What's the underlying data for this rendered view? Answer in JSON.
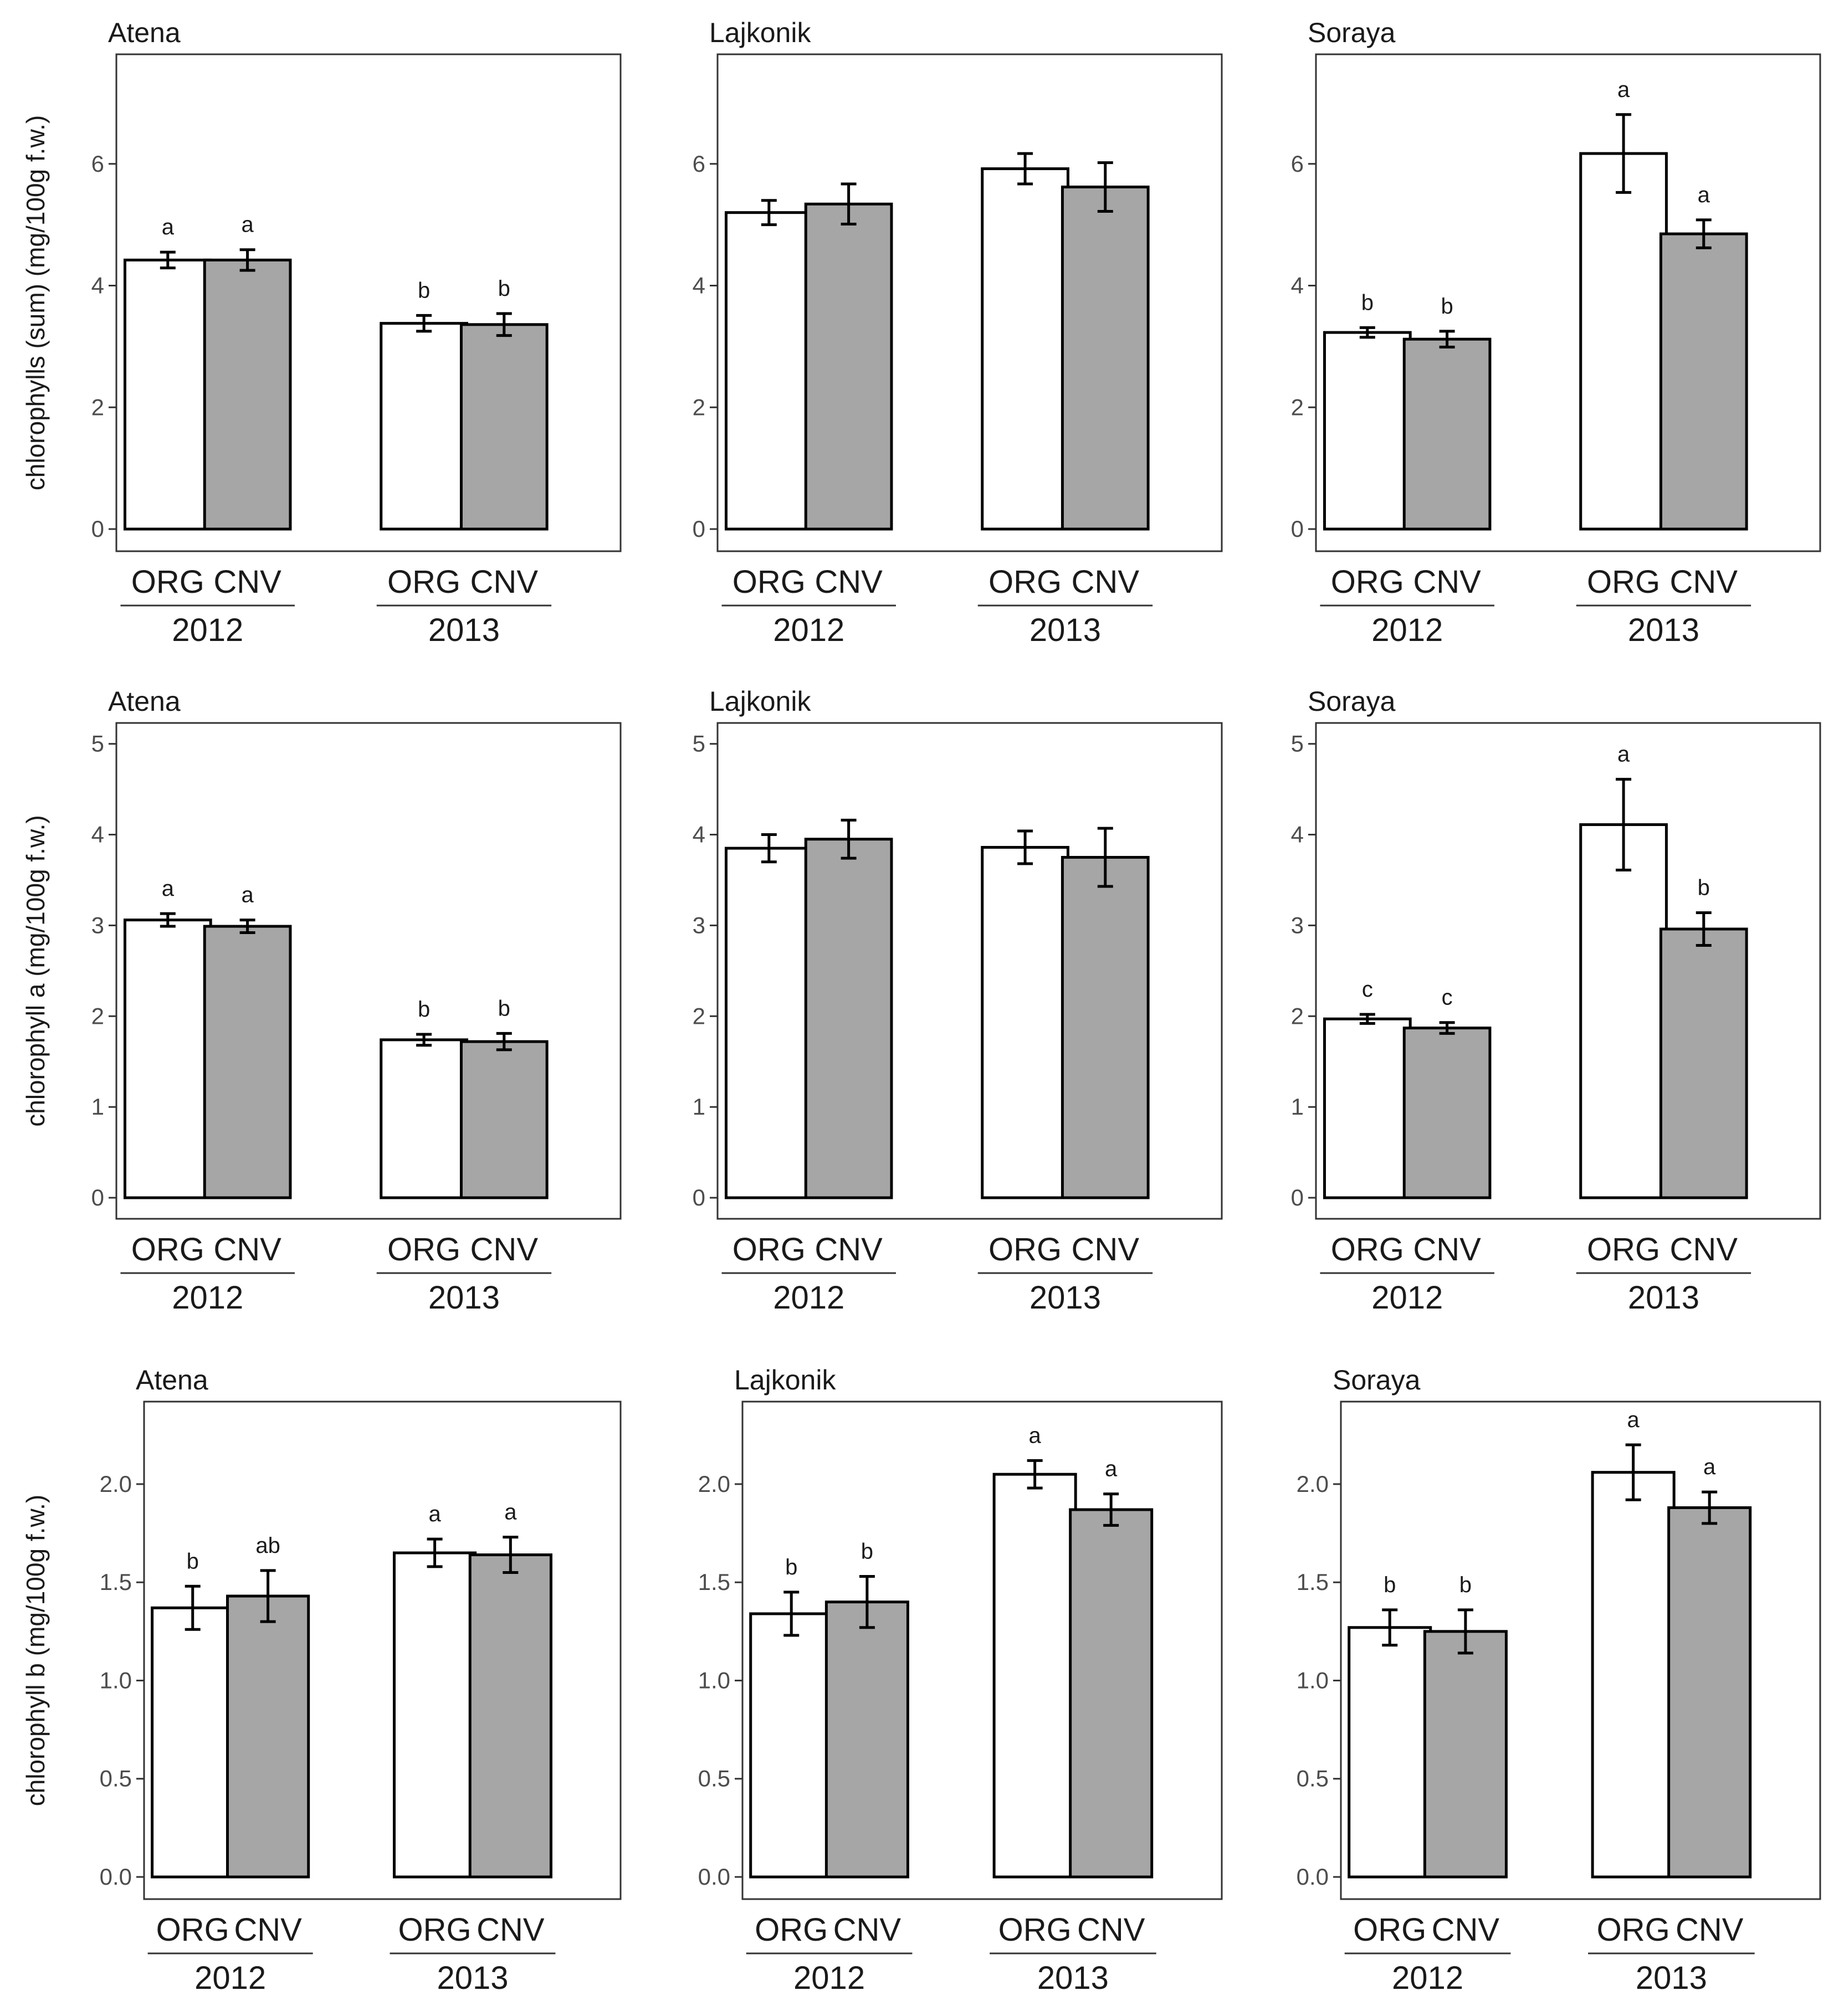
{
  "chart_data": [
    {
      "type": "bar",
      "title": "Atena",
      "ylabel": "chlorophylls (sum) (mg/100g f.w.)",
      "ylim": [
        0,
        7.8
      ],
      "yticks": [
        "0",
        "2",
        "4",
        "6"
      ],
      "groups": [
        "2012",
        "2013"
      ],
      "categories": [
        "ORG",
        "CNV"
      ],
      "series": [
        {
          "name": "ORG",
          "color": "#ffffff",
          "values": [
            4.42,
            3.38
          ],
          "errors": [
            0.13,
            0.13
          ],
          "labels": [
            "a",
            "b"
          ]
        },
        {
          "name": "CNV",
          "color": "#a6a6a6",
          "values": [
            4.42,
            3.36
          ],
          "errors": [
            0.17,
            0.18
          ],
          "labels": [
            "a",
            "b"
          ]
        }
      ]
    },
    {
      "type": "bar",
      "title": "Lajkonik",
      "ylabel": "",
      "ylim": [
        0,
        7.8
      ],
      "yticks": [
        "0",
        "2",
        "4",
        "6"
      ],
      "groups": [
        "2012",
        "2013"
      ],
      "categories": [
        "ORG",
        "CNV"
      ],
      "series": [
        {
          "name": "ORG",
          "color": "#ffffff",
          "values": [
            5.2,
            5.92
          ],
          "errors": [
            0.2,
            0.25
          ],
          "labels": [
            "",
            ""
          ]
        },
        {
          "name": "CNV",
          "color": "#a6a6a6",
          "values": [
            5.34,
            5.62
          ],
          "errors": [
            0.33,
            0.4
          ],
          "labels": [
            "",
            ""
          ]
        }
      ]
    },
    {
      "type": "bar",
      "title": "Soraya",
      "ylabel": "",
      "ylim": [
        0,
        7.8
      ],
      "yticks": [
        "0",
        "2",
        "4",
        "6"
      ],
      "groups": [
        "2012",
        "2013"
      ],
      "categories": [
        "ORG",
        "CNV"
      ],
      "series": [
        {
          "name": "ORG",
          "color": "#ffffff",
          "values": [
            3.23,
            6.17
          ],
          "errors": [
            0.08,
            0.64
          ],
          "labels": [
            "b",
            "a"
          ]
        },
        {
          "name": "CNV",
          "color": "#a6a6a6",
          "values": [
            3.12,
            4.85
          ],
          "errors": [
            0.13,
            0.23
          ],
          "labels": [
            "b",
            "a"
          ]
        }
      ]
    },
    {
      "type": "bar",
      "title": "Atena",
      "ylabel": "chlorophyll a (mg/100g f.w.)",
      "ylim": [
        0,
        5.23
      ],
      "yticks": [
        "0",
        "1",
        "2",
        "3",
        "4",
        "5"
      ],
      "groups": [
        "2012",
        "2013"
      ],
      "categories": [
        "ORG",
        "CNV"
      ],
      "series": [
        {
          "name": "ORG",
          "color": "#ffffff",
          "values": [
            3.06,
            1.74
          ],
          "errors": [
            0.07,
            0.06
          ],
          "labels": [
            "a",
            "b"
          ]
        },
        {
          "name": "CNV",
          "color": "#a6a6a6",
          "values": [
            2.99,
            1.72
          ],
          "errors": [
            0.07,
            0.09
          ],
          "labels": [
            "a",
            "b"
          ]
        }
      ]
    },
    {
      "type": "bar",
      "title": "Lajkonik",
      "ylabel": "",
      "ylim": [
        0,
        5.23
      ],
      "yticks": [
        "0",
        "1",
        "2",
        "3",
        "4",
        "5"
      ],
      "groups": [
        "2012",
        "2013"
      ],
      "categories": [
        "ORG",
        "CNV"
      ],
      "series": [
        {
          "name": "ORG",
          "color": "#ffffff",
          "values": [
            3.85,
            3.86
          ],
          "errors": [
            0.15,
            0.18
          ],
          "labels": [
            "",
            ""
          ]
        },
        {
          "name": "CNV",
          "color": "#a6a6a6",
          "values": [
            3.95,
            3.75
          ],
          "errors": [
            0.21,
            0.32
          ],
          "labels": [
            "",
            ""
          ]
        }
      ]
    },
    {
      "type": "bar",
      "title": "Soraya",
      "ylabel": "",
      "ylim": [
        0,
        5.23
      ],
      "yticks": [
        "0",
        "1",
        "2",
        "3",
        "4",
        "5"
      ],
      "groups": [
        "2012",
        "2013"
      ],
      "categories": [
        "ORG",
        "CNV"
      ],
      "series": [
        {
          "name": "ORG",
          "color": "#ffffff",
          "values": [
            1.97,
            4.11
          ],
          "errors": [
            0.05,
            0.5
          ],
          "labels": [
            "c",
            "a"
          ]
        },
        {
          "name": "CNV",
          "color": "#a6a6a6",
          "values": [
            1.87,
            2.96
          ],
          "errors": [
            0.06,
            0.18
          ],
          "labels": [
            "c",
            "b"
          ]
        }
      ]
    },
    {
      "type": "bar",
      "title": "Atena",
      "ylabel": "chlorophyll b (mg/100g f.w.)",
      "ylim": [
        0,
        2.42
      ],
      "yticks": [
        "0.0",
        "0.5",
        "1.0",
        "1.5",
        "2.0"
      ],
      "groups": [
        "2012",
        "2013"
      ],
      "categories": [
        "ORG",
        "CNV"
      ],
      "series": [
        {
          "name": "ORG",
          "color": "#ffffff",
          "values": [
            1.37,
            1.65
          ],
          "errors": [
            0.11,
            0.07
          ],
          "labels": [
            "b",
            "a"
          ]
        },
        {
          "name": "CNV",
          "color": "#a6a6a6",
          "values": [
            1.43,
            1.64
          ],
          "errors": [
            0.13,
            0.09
          ],
          "labels": [
            "ab",
            "a"
          ]
        }
      ]
    },
    {
      "type": "bar",
      "title": "Lajkonik",
      "ylabel": "",
      "ylim": [
        0,
        2.42
      ],
      "yticks": [
        "0.0",
        "0.5",
        "1.0",
        "1.5",
        "2.0"
      ],
      "groups": [
        "2012",
        "2013"
      ],
      "categories": [
        "ORG",
        "CNV"
      ],
      "series": [
        {
          "name": "ORG",
          "color": "#ffffff",
          "values": [
            1.34,
            2.05
          ],
          "errors": [
            0.11,
            0.07
          ],
          "labels": [
            "b",
            "a"
          ]
        },
        {
          "name": "CNV",
          "color": "#a6a6a6",
          "values": [
            1.4,
            1.87
          ],
          "errors": [
            0.13,
            0.08
          ],
          "labels": [
            "b",
            "a"
          ]
        }
      ]
    },
    {
      "type": "bar",
      "title": "Soraya",
      "ylabel": "",
      "ylim": [
        0,
        2.42
      ],
      "yticks": [
        "0.0",
        "0.5",
        "1.0",
        "1.5",
        "2.0"
      ],
      "groups": [
        "2012",
        "2013"
      ],
      "categories": [
        "ORG",
        "CNV"
      ],
      "series": [
        {
          "name": "ORG",
          "color": "#ffffff",
          "values": [
            1.27,
            2.06
          ],
          "errors": [
            0.09,
            0.14
          ],
          "labels": [
            "b",
            "a"
          ]
        },
        {
          "name": "CNV",
          "color": "#a6a6a6",
          "values": [
            1.25,
            1.88
          ],
          "errors": [
            0.11,
            0.08
          ],
          "labels": [
            "b",
            "a"
          ]
        }
      ]
    }
  ]
}
